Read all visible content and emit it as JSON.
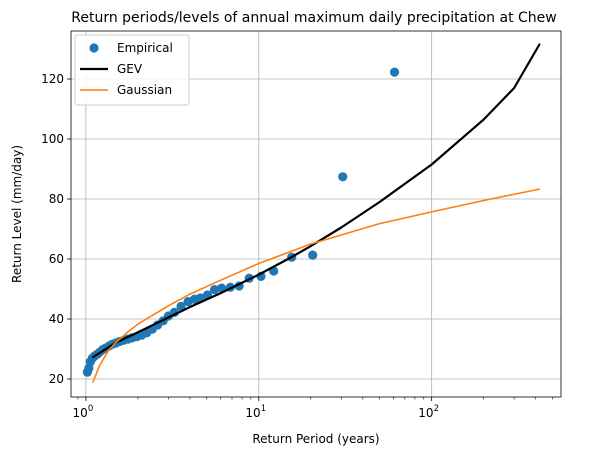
{
  "chart_data": {
    "type": "line",
    "title": "Return periods/levels of annual maximum daily precipitation at Chew",
    "xlabel": "Return Period (years)",
    "ylabel": "Return Level (mm/day)",
    "x_scale": "log",
    "xlim": [
      0.82,
      560
    ],
    "ylim": [
      14,
      136
    ],
    "x_ticks": [
      {
        "value": 1,
        "base": "10",
        "exp": "0"
      },
      {
        "value": 10,
        "base": "10",
        "exp": "1"
      },
      {
        "value": 100,
        "base": "10",
        "exp": "2"
      }
    ],
    "y_ticks": [
      20,
      40,
      60,
      80,
      100,
      120
    ],
    "grid": true,
    "legend_position": "top-left",
    "series": [
      {
        "name": "Empirical",
        "type": "scatter",
        "color": "#1f77b4",
        "points": [
          [
            1.02,
            22.3
          ],
          [
            1.04,
            23.6
          ],
          [
            1.06,
            25.7
          ],
          [
            1.09,
            26.9
          ],
          [
            1.12,
            27.6
          ],
          [
            1.16,
            28.2
          ],
          [
            1.2,
            28.9
          ],
          [
            1.25,
            29.8
          ],
          [
            1.3,
            30.3
          ],
          [
            1.36,
            31.0
          ],
          [
            1.42,
            31.6
          ],
          [
            1.49,
            32.0
          ],
          [
            1.57,
            32.5
          ],
          [
            1.65,
            32.9
          ],
          [
            1.75,
            33.3
          ],
          [
            1.85,
            33.7
          ],
          [
            1.97,
            34.1
          ],
          [
            2.1,
            34.6
          ],
          [
            2.25,
            35.4
          ],
          [
            2.42,
            36.6
          ],
          [
            2.6,
            38.0
          ],
          [
            2.8,
            39.4
          ],
          [
            3.0,
            41.0
          ],
          [
            3.25,
            42.2
          ],
          [
            3.55,
            44.2
          ],
          [
            3.9,
            45.8
          ],
          [
            4.25,
            46.6
          ],
          [
            4.6,
            47.0
          ],
          [
            5.05,
            48.0
          ],
          [
            5.55,
            49.8
          ],
          [
            6.1,
            50.3
          ],
          [
            6.85,
            50.6
          ],
          [
            7.7,
            51.0
          ],
          [
            8.8,
            53.6
          ],
          [
            10.3,
            54.2
          ],
          [
            12.2,
            56.0
          ],
          [
            15.5,
            60.6
          ],
          [
            20.5,
            61.3
          ],
          [
            30.6,
            87.4
          ],
          [
            61.0,
            122.3
          ]
        ]
      },
      {
        "name": "GEV",
        "type": "line",
        "color": "#000000",
        "points": [
          [
            1.1,
            27.3
          ],
          [
            1.5,
            32.2
          ],
          [
            2,
            35.6
          ],
          [
            3,
            40.5
          ],
          [
            4,
            44.0
          ],
          [
            6,
            48.6
          ],
          [
            10,
            54.8
          ],
          [
            15,
            60.2
          ],
          [
            20,
            64.3
          ],
          [
            30,
            70.5
          ],
          [
            50,
            79.0
          ],
          [
            100,
            91.5
          ],
          [
            200,
            106.5
          ],
          [
            300,
            117.0
          ],
          [
            420,
            131.5
          ]
        ]
      },
      {
        "name": "Gaussian",
        "type": "line",
        "color": "#ff7f0e",
        "points": [
          [
            1.1,
            19.0
          ],
          [
            1.2,
            24.5
          ],
          [
            1.35,
            29.5
          ],
          [
            1.5,
            32.3
          ],
          [
            1.75,
            35.7
          ],
          [
            2,
            38.3
          ],
          [
            3,
            44.4
          ],
          [
            4,
            48.3
          ],
          [
            6,
            52.9
          ],
          [
            10,
            58.5
          ],
          [
            20,
            65.0
          ],
          [
            50,
            71.8
          ],
          [
            100,
            75.7
          ],
          [
            200,
            79.5
          ],
          [
            420,
            83.3
          ]
        ]
      }
    ]
  }
}
